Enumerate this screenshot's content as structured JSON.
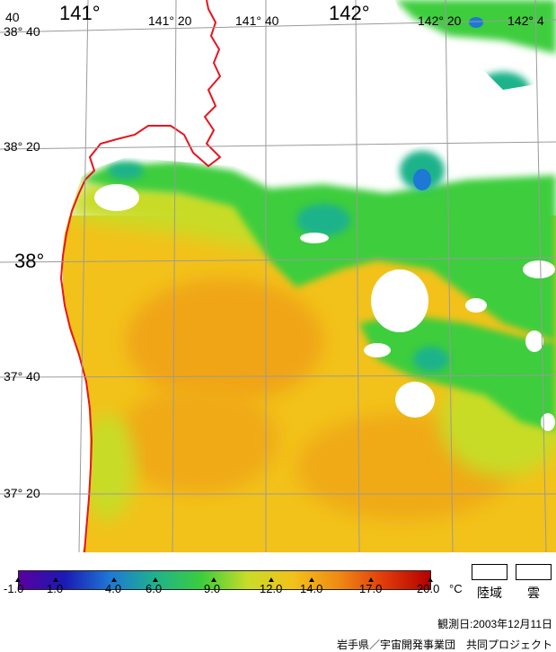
{
  "map": {
    "lon_labels": [
      {
        "text": "141°",
        "size": "big"
      },
      {
        "text": "141° 20",
        "size": "sm"
      },
      {
        "text": "141° 40",
        "size": "sm"
      },
      {
        "text": "142°",
        "size": "big"
      },
      {
        "text": "142° 20",
        "size": "sm"
      },
      {
        "text": "142° 4",
        "size": "sm"
      }
    ],
    "lat_labels": [
      {
        "text": "38° 40",
        "size": "sm"
      },
      {
        "text": "38° 20",
        "size": "sm"
      },
      {
        "text": "38°",
        "size": "big"
      },
      {
        "text": "37° 40",
        "size": "sm"
      },
      {
        "text": "37° 20",
        "size": "sm"
      }
    ],
    "corner_label": "40",
    "colors": {
      "coast": "#e8141e",
      "grid": "#9a9a9a",
      "warm": "#f2c21a",
      "mid": "#c8dc28",
      "green": "#3ccd3c",
      "teal": "#1fb38a",
      "blue": "#1e78d6",
      "navy": "#1a1ab4",
      "cloud": "#ffffff"
    }
  },
  "legend": {
    "ticks": [
      "-1.0",
      "1.0",
      "4.0",
      "6.0",
      "9.0",
      "12.0",
      "14.0",
      "17.0",
      "20.0"
    ],
    "unit": "°C",
    "land_label": "陸域",
    "cloud_label": "雲",
    "colormap": [
      "#5a00a0",
      "#1a1ab4",
      "#1e78d6",
      "#1fb38a",
      "#3ccd3c",
      "#c8dc28",
      "#f2c21a",
      "#f08a14",
      "#e03a0a",
      "#b40000"
    ]
  },
  "footer": {
    "date_label": "観測日:2003年12月11日",
    "credit": "岩手県／宇宙開発事業団　共同プロジェクト"
  }
}
